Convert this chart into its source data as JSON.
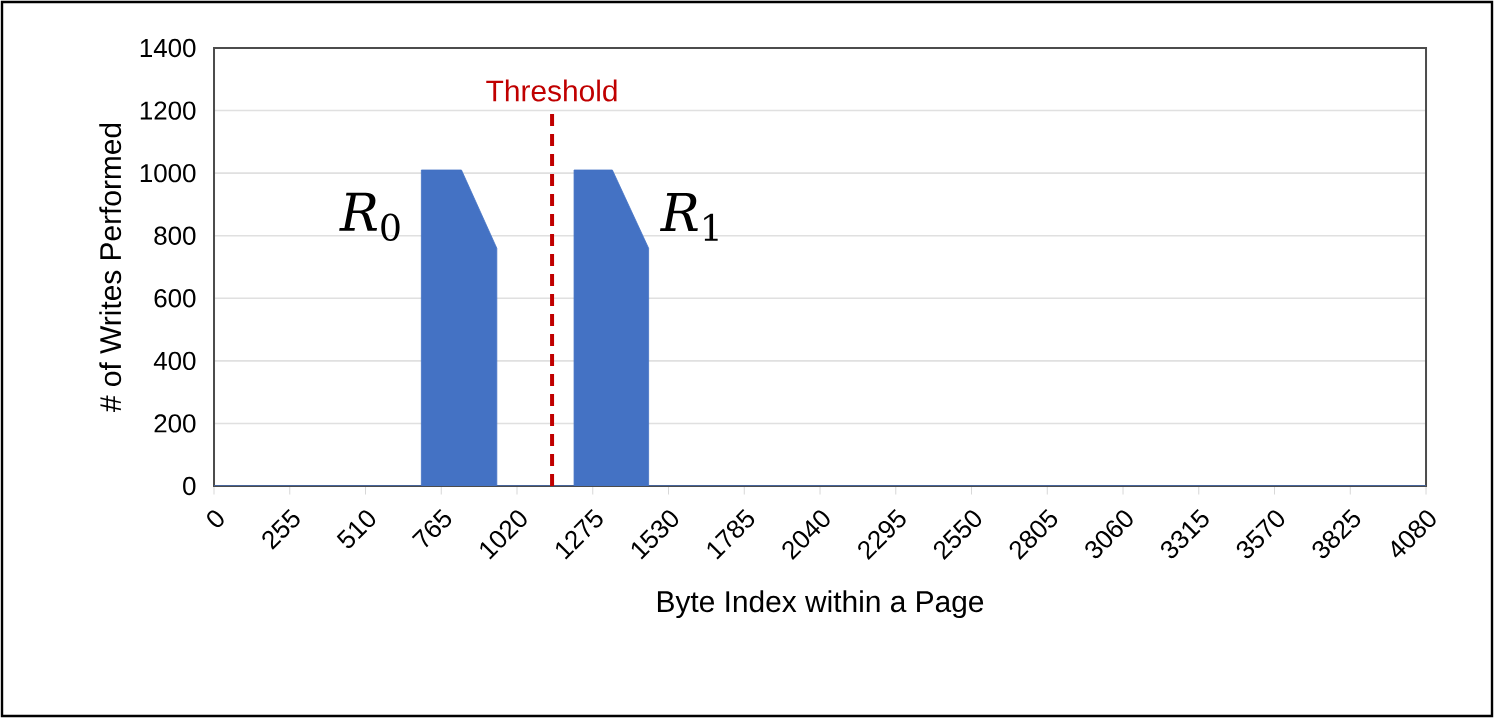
{
  "chart_data": {
    "type": "area",
    "xlabel": "Byte Index within a Page",
    "ylabel": "# of Writes Performed",
    "x": [
      0,
      698,
      698,
      833,
      952,
      952,
      1212,
      1212,
      1341,
      1463,
      1463,
      4080
    ],
    "series": [
      {
        "color": "#4472c4",
        "values": [
          0,
          0,
          1010,
          1010,
          760,
          0,
          0,
          1010,
          1010,
          760,
          0,
          0
        ]
      }
    ],
    "xlim": [
      0,
      4080
    ],
    "xticks": [
      0,
      255,
      510,
      765,
      1020,
      1275,
      1530,
      1785,
      2040,
      2295,
      2550,
      2805,
      3060,
      3315,
      3570,
      3825,
      4080
    ],
    "ylim": [
      0,
      1400
    ],
    "yticks": [
      0,
      200,
      400,
      600,
      800,
      1000,
      1200,
      1400
    ],
    "grid": "y",
    "ref_lines": [
      {
        "axis": "x",
        "value": 1138,
        "label": "Threshold",
        "color": "#c00000",
        "line_style": "dashed"
      }
    ],
    "annotations": [
      "*R*$_{0}$",
      "*R*$_{1}$"
    ]
  }
}
